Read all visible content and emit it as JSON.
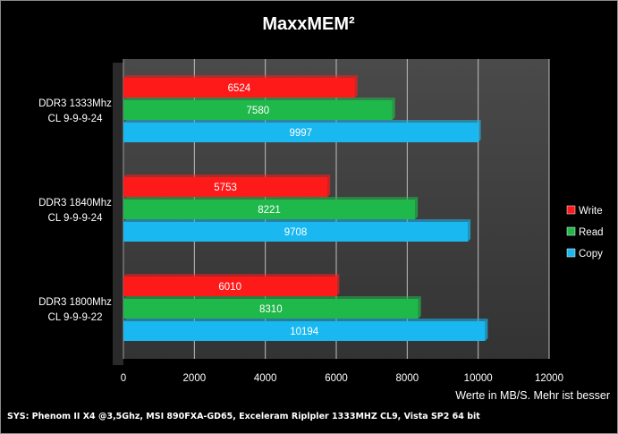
{
  "chart_data": {
    "type": "bar",
    "orientation": "horizontal",
    "title": "MaxxMEM²",
    "xlabel": "Werte in MB/S. Mehr ist besser",
    "ylabel": "",
    "xlim": [
      0,
      12000
    ],
    "x_ticks": [
      0,
      2000,
      4000,
      6000,
      8000,
      10000,
      12000
    ],
    "grid": true,
    "legend_position": "right",
    "categories": [
      [
        "DDR3 1333Mhz",
        "CL 9-9-9-24"
      ],
      [
        "DDR3 1840Mhz",
        "CL 9-9-9-24"
      ],
      [
        "DDR3 1800Mhz",
        "CL 9-9-9-22"
      ]
    ],
    "series": [
      {
        "name": "Write",
        "color": "#ff1a1a",
        "values": [
          6524,
          5753,
          6010
        ]
      },
      {
        "name": "Read",
        "color": "#1fb84a",
        "values": [
          7580,
          8221,
          8310
        ]
      },
      {
        "name": "Copy",
        "color": "#1ab8f0",
        "values": [
          9997,
          9708,
          10194
        ]
      }
    ],
    "plot_background": "#3a3a3a",
    "gridline_color": "#bfbfbf"
  },
  "footer": "SYS: Phenom II X4 @3,5Ghz, MSI 890FXA-GD65, Exceleram Riplpler 1333MHZ CL9, Vista SP2 64 bit"
}
